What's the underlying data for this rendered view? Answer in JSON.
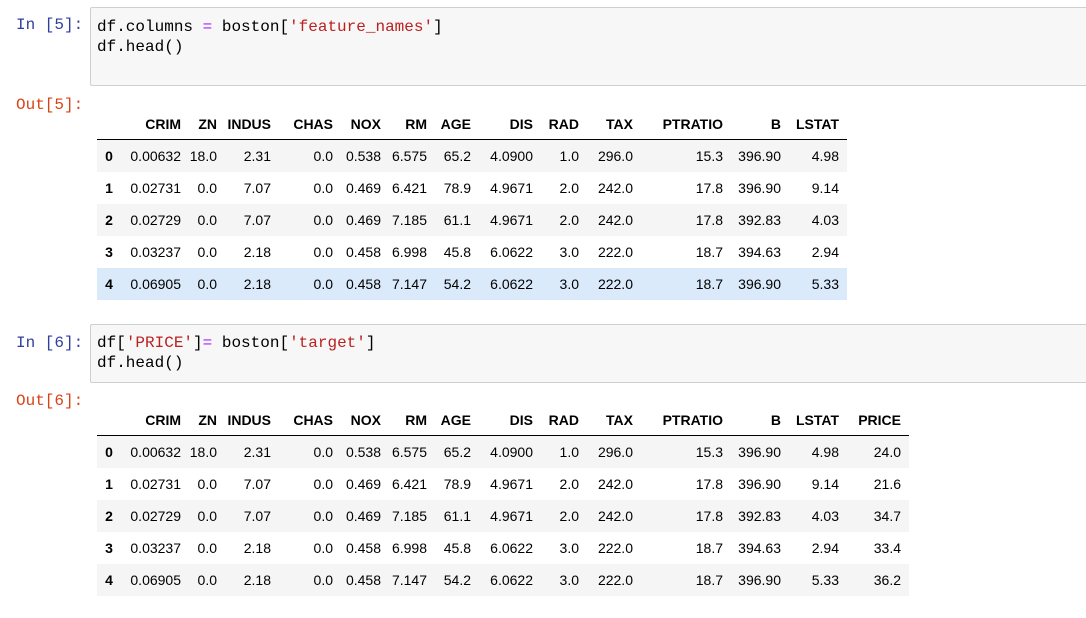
{
  "cells": [
    {
      "in_prompt": "In [5]:",
      "code_lines": [
        [
          {
            "t": "df.columns "
          },
          {
            "t": "=",
            "k": "op"
          },
          {
            "t": " boston["
          },
          {
            "t": "'feature_names'",
            "k": "str"
          },
          {
            "t": "]"
          }
        ],
        [
          {
            "t": "df.head()"
          }
        ]
      ],
      "out_prompt": "Out[5]:",
      "table": {
        "columns": [
          "CRIM",
          "ZN",
          "INDUS",
          "CHAS",
          "NOX",
          "RM",
          "AGE",
          "DIS",
          "RAD",
          "TAX",
          "PTRATIO",
          "B",
          "LSTAT"
        ],
        "rows": [
          {
            "index": "0",
            "values": [
              "0.00632",
              "18.0",
              "2.31",
              "0.0",
              "0.538",
              "6.575",
              "65.2",
              "4.0900",
              "1.0",
              "296.0",
              "15.3",
              "396.90",
              "4.98"
            ]
          },
          {
            "index": "1",
            "values": [
              "0.02731",
              "0.0",
              "7.07",
              "0.0",
              "0.469",
              "6.421",
              "78.9",
              "4.9671",
              "2.0",
              "242.0",
              "17.8",
              "396.90",
              "9.14"
            ]
          },
          {
            "index": "2",
            "values": [
              "0.02729",
              "0.0",
              "7.07",
              "0.0",
              "0.469",
              "7.185",
              "61.1",
              "4.9671",
              "2.0",
              "242.0",
              "17.8",
              "392.83",
              "4.03"
            ]
          },
          {
            "index": "3",
            "values": [
              "0.03237",
              "0.0",
              "2.18",
              "0.0",
              "0.458",
              "6.998",
              "45.8",
              "6.0622",
              "3.0",
              "222.0",
              "18.7",
              "394.63",
              "2.94"
            ]
          },
          {
            "index": "4",
            "values": [
              "0.06905",
              "0.0",
              "2.18",
              "0.0",
              "0.458",
              "7.147",
              "54.2",
              "6.0622",
              "3.0",
              "222.0",
              "18.7",
              "396.90",
              "5.33"
            ]
          }
        ],
        "highlighted_row": 4
      }
    },
    {
      "in_prompt": "In [6]:",
      "code_lines": [
        [
          {
            "t": "df["
          },
          {
            "t": "'PRICE'",
            "k": "str"
          },
          {
            "t": "]"
          },
          {
            "t": "=",
            "k": "op"
          },
          {
            "t": " boston["
          },
          {
            "t": "'target'",
            "k": "str"
          },
          {
            "t": "]"
          }
        ],
        [
          {
            "t": "df.head()"
          }
        ]
      ],
      "out_prompt": "Out[6]:",
      "table": {
        "columns": [
          "CRIM",
          "ZN",
          "INDUS",
          "CHAS",
          "NOX",
          "RM",
          "AGE",
          "DIS",
          "RAD",
          "TAX",
          "PTRATIO",
          "B",
          "LSTAT",
          "PRICE"
        ],
        "rows": [
          {
            "index": "0",
            "values": [
              "0.00632",
              "18.0",
              "2.31",
              "0.0",
              "0.538",
              "6.575",
              "65.2",
              "4.0900",
              "1.0",
              "296.0",
              "15.3",
              "396.90",
              "4.98",
              "24.0"
            ]
          },
          {
            "index": "1",
            "values": [
              "0.02731",
              "0.0",
              "7.07",
              "0.0",
              "0.469",
              "6.421",
              "78.9",
              "4.9671",
              "2.0",
              "242.0",
              "17.8",
              "396.90",
              "9.14",
              "21.6"
            ]
          },
          {
            "index": "2",
            "values": [
              "0.02729",
              "0.0",
              "7.07",
              "0.0",
              "0.469",
              "7.185",
              "61.1",
              "4.9671",
              "2.0",
              "242.0",
              "17.8",
              "392.83",
              "4.03",
              "34.7"
            ]
          },
          {
            "index": "3",
            "values": [
              "0.03237",
              "0.0",
              "2.18",
              "0.0",
              "0.458",
              "6.998",
              "45.8",
              "6.0622",
              "3.0",
              "222.0",
              "18.7",
              "394.63",
              "2.94",
              "33.4"
            ]
          },
          {
            "index": "4",
            "values": [
              "0.06905",
              "0.0",
              "2.18",
              "0.0",
              "0.458",
              "7.147",
              "54.2",
              "6.0622",
              "3.0",
              "222.0",
              "18.7",
              "396.90",
              "5.33",
              "36.2"
            ]
          }
        ],
        "highlighted_row": null
      }
    }
  ]
}
